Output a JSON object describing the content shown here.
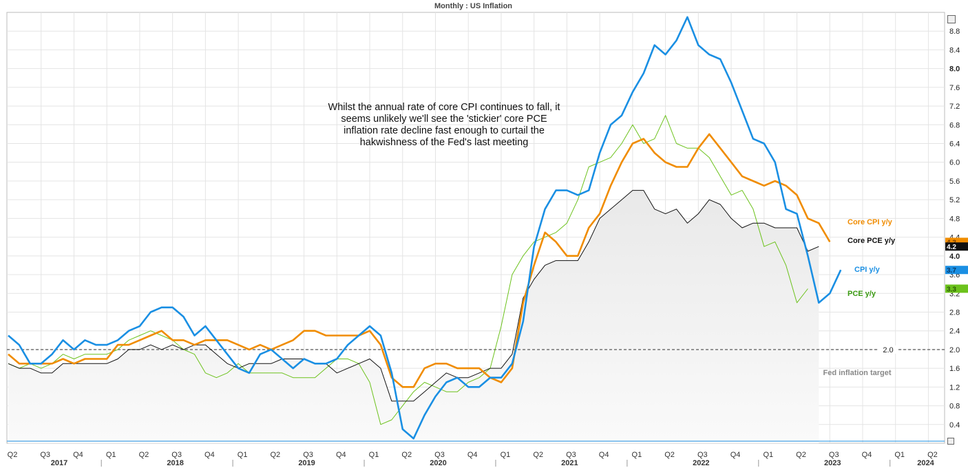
{
  "title": "Monthly : US Inflation",
  "annotation": "Whilst the annual rate of core CPI continues to fall, it seems unlikely we'll see the 'stickier' core PCE inflation rate decline fast enough to curtail the hakwishness of the Fed's last meeting",
  "reference_line": {
    "value": 2.0,
    "label": "2.0",
    "caption": "Fed inflation target"
  },
  "colors": {
    "cpi": "#1a8fe3",
    "core_cpi": "#f08c00",
    "pce": "#6cc21c",
    "core_pce": "#111111",
    "pce_label": "#3a9a12"
  },
  "chart_data": {
    "type": "line",
    "title": "Monthly : US Inflation",
    "ylim": [
      0,
      9.2
    ],
    "y_ticks": [
      "0.4",
      "0.8",
      "1.2",
      "1.6",
      "2.0",
      "2.4",
      "2.8",
      "3.2",
      "3.6",
      "4.0",
      "4.4",
      "4.8",
      "5.2",
      "5.6",
      "6.0",
      "6.4",
      "6.8",
      "7.2",
      "7.6",
      "8.0",
      "8.4",
      "8.8"
    ],
    "bold_y_ticks": [
      "4.0",
      "8.0"
    ],
    "x_quarter_labels": [
      "Q2",
      "Q3",
      "Q4",
      "Q1",
      "Q2",
      "Q3",
      "Q4",
      "Q1",
      "Q2",
      "Q3",
      "Q4",
      "Q1",
      "Q2",
      "Q3",
      "Q4",
      "Q1",
      "Q2",
      "Q3",
      "Q4",
      "Q1",
      "Q2",
      "Q3",
      "Q4",
      "Q1",
      "Q2",
      "Q3",
      "Q4",
      "Q1",
      "Q2"
    ],
    "x_year_labels": [
      "2017",
      "2018",
      "2019",
      "2020",
      "2021",
      "2022",
      "2023",
      "2024"
    ],
    "x_start": "2017-04",
    "series": [
      {
        "name": "CPI y/y",
        "label": "CPI y/y",
        "last": "3.7",
        "key": "cpi",
        "values": [
          2.3,
          2.1,
          1.7,
          1.7,
          1.9,
          2.2,
          2.0,
          2.2,
          2.1,
          2.1,
          2.2,
          2.4,
          2.5,
          2.8,
          2.9,
          2.9,
          2.7,
          2.3,
          2.5,
          2.2,
          1.9,
          1.6,
          1.5,
          1.9,
          2.0,
          1.8,
          1.6,
          1.8,
          1.7,
          1.7,
          1.8,
          2.1,
          2.3,
          2.5,
          2.3,
          1.5,
          0.3,
          0.1,
          0.6,
          1.0,
          1.3,
          1.4,
          1.2,
          1.2,
          1.4,
          1.4,
          1.7,
          2.6,
          4.2,
          5.0,
          5.4,
          5.4,
          5.3,
          5.4,
          6.2,
          6.8,
          7.0,
          7.5,
          7.9,
          8.5,
          8.3,
          8.6,
          9.1,
          8.5,
          8.3,
          8.2,
          7.7,
          7.1,
          6.5,
          6.4,
          6.0,
          5.0,
          4.9,
          4.0,
          3.0,
          3.2,
          3.7
        ]
      },
      {
        "name": "Core CPI y/y",
        "label": "Core CPI y/y",
        "last": "4.3",
        "key": "core_cpi",
        "values": [
          1.9,
          1.7,
          1.7,
          1.7,
          1.7,
          1.8,
          1.7,
          1.8,
          1.8,
          1.8,
          2.1,
          2.1,
          2.2,
          2.3,
          2.4,
          2.2,
          2.2,
          2.1,
          2.2,
          2.2,
          2.2,
          2.1,
          2.0,
          2.1,
          2.0,
          2.1,
          2.2,
          2.4,
          2.4,
          2.3,
          2.3,
          2.3,
          2.3,
          2.4,
          2.1,
          1.4,
          1.2,
          1.2,
          1.6,
          1.7,
          1.7,
          1.6,
          1.6,
          1.6,
          1.4,
          1.3,
          1.6,
          3.0,
          3.8,
          4.5,
          4.3,
          4.0,
          4.0,
          4.6,
          4.9,
          5.5,
          6.0,
          6.4,
          6.5,
          6.2,
          6.0,
          5.9,
          5.9,
          6.3,
          6.6,
          6.3,
          6.0,
          5.7,
          5.6,
          5.5,
          5.6,
          5.5,
          5.3,
          4.8,
          4.7,
          4.3
        ]
      },
      {
        "name": "Core PCE y/y",
        "label": "Core PCE y/y",
        "last": "4.2",
        "key": "core_pce",
        "values": [
          1.7,
          1.6,
          1.6,
          1.5,
          1.5,
          1.7,
          1.7,
          1.7,
          1.7,
          1.7,
          1.8,
          2.0,
          2.0,
          2.1,
          2.0,
          2.1,
          2.0,
          2.1,
          2.1,
          1.9,
          1.7,
          1.6,
          1.7,
          1.7,
          1.7,
          1.8,
          1.8,
          1.8,
          1.7,
          1.7,
          1.5,
          1.6,
          1.7,
          1.8,
          1.6,
          0.9,
          0.9,
          0.9,
          1.1,
          1.3,
          1.5,
          1.4,
          1.4,
          1.5,
          1.6,
          1.6,
          1.9,
          3.1,
          3.5,
          3.8,
          3.9,
          3.9,
          3.9,
          4.3,
          4.8,
          5.0,
          5.2,
          5.4,
          5.4,
          5.0,
          4.9,
          5.0,
          4.7,
          4.9,
          5.2,
          5.1,
          4.8,
          4.6,
          4.7,
          4.7,
          4.6,
          4.6,
          4.6,
          4.1,
          4.2
        ]
      },
      {
        "name": "PCE y/y",
        "label": "PCE y/y",
        "last": "3.3",
        "key": "pce",
        "values": [
          1.7,
          1.6,
          1.7,
          1.6,
          1.7,
          1.9,
          1.8,
          1.9,
          1.9,
          1.9,
          2.0,
          2.2,
          2.3,
          2.4,
          2.3,
          2.2,
          2.0,
          1.9,
          1.5,
          1.4,
          1.5,
          1.7,
          1.5,
          1.5,
          1.5,
          1.5,
          1.4,
          1.4,
          1.4,
          1.6,
          1.8,
          1.8,
          1.7,
          1.3,
          0.4,
          0.5,
          0.8,
          1.1,
          1.3,
          1.2,
          1.1,
          1.1,
          1.3,
          1.4,
          1.6,
          2.5,
          3.6,
          4.0,
          4.3,
          4.4,
          4.5,
          4.7,
          5.2,
          5.9,
          6.0,
          6.1,
          6.4,
          6.8,
          6.4,
          6.5,
          7.0,
          6.4,
          6.3,
          6.3,
          6.1,
          5.7,
          5.3,
          5.4,
          5.0,
          4.2,
          4.3,
          3.8,
          3.0,
          3.3
        ]
      }
    ]
  }
}
